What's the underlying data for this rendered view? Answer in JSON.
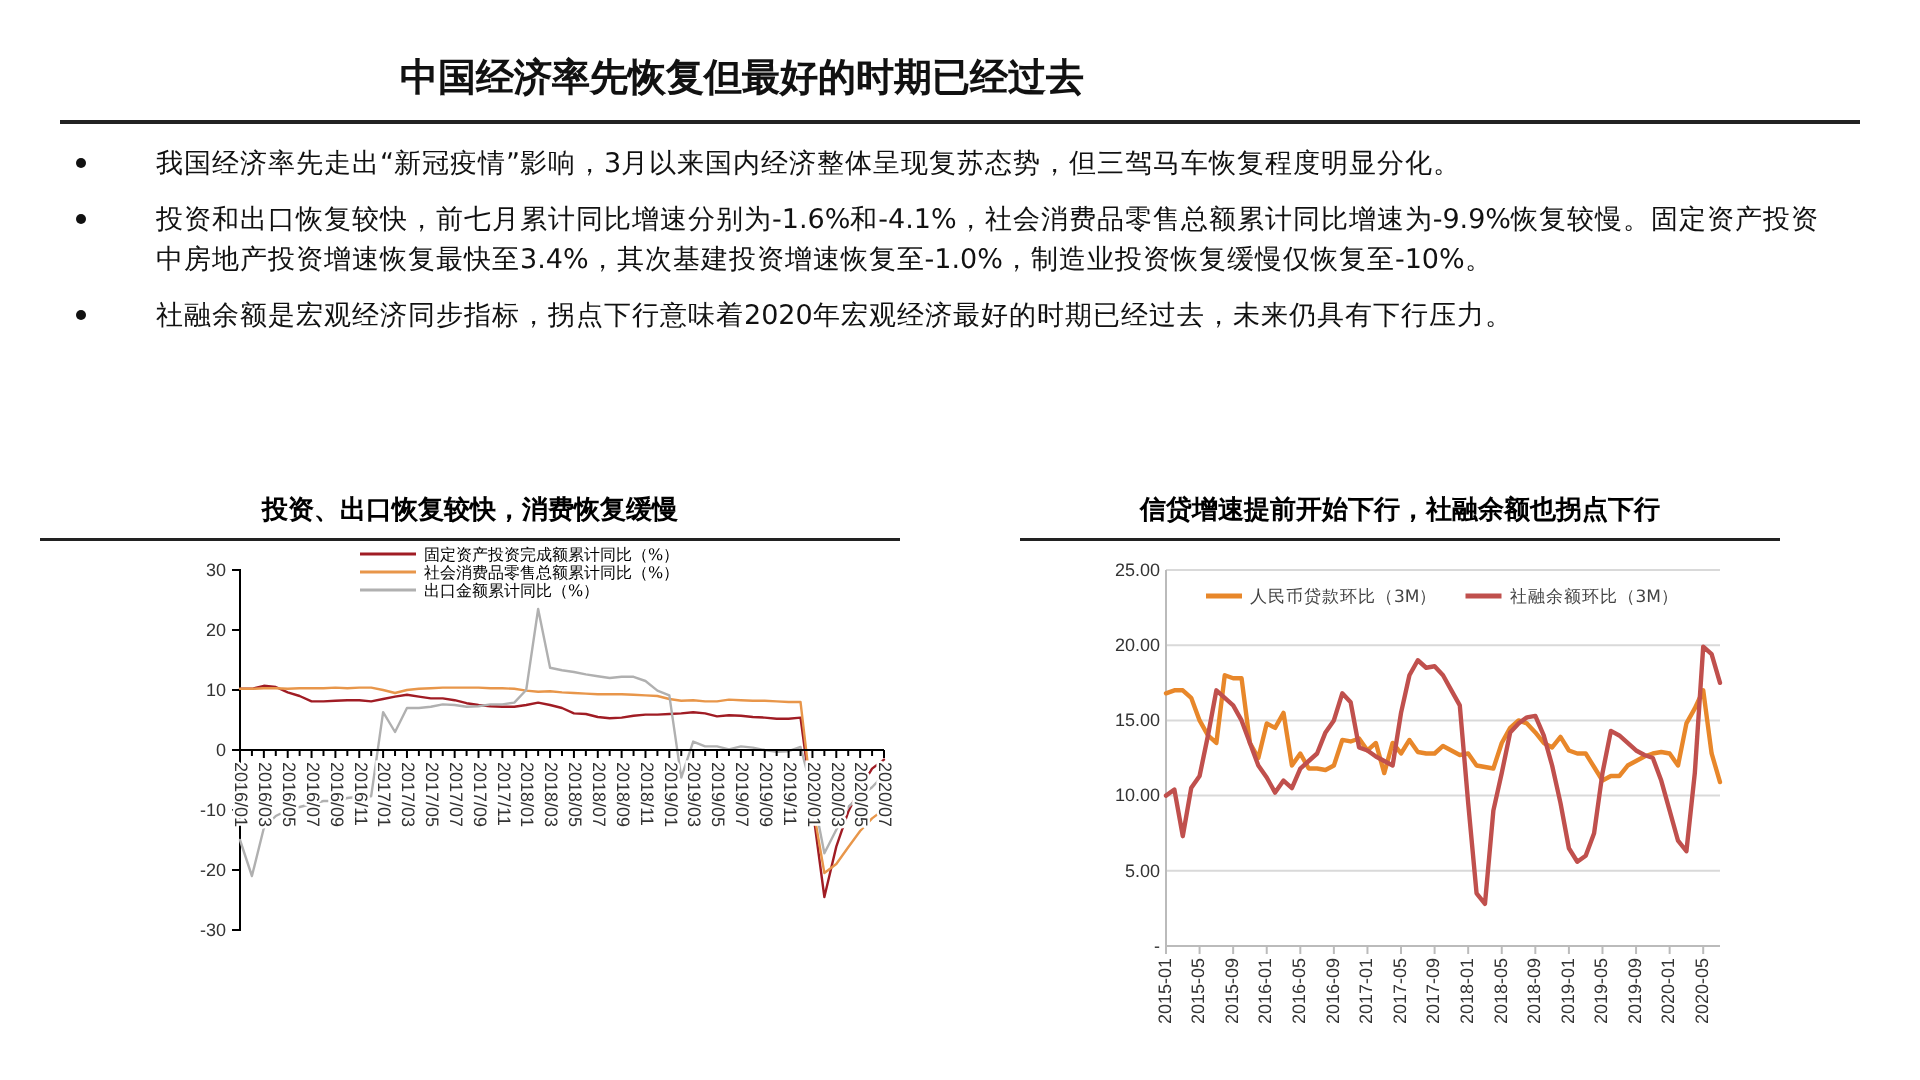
{
  "chart_data": [
    {
      "type": "other",
      "title": "中国经济率先恢复但最好的时期已经过去",
      "annotations": [
        "我国经济率先走出“新冠疫情”影响，3月以来国内经济整体呈现复苏态势，但三驾马车恢复程度明显分化。",
        "投资和出口恢复较快，前七月累计同比增速分别为-1.6%和-4.1%，社会消费品零售总额累计同比增速为-9.9%恢复较慢。固定资产投资中房地产投资增速恢复最快至3.4%，其次基建投资增速恢复至-1.0%，制造业投资恢复缓慢仅恢复至-10%。",
        "社融余额是宏观经济同步指标，拐点下行意味着2020年宏观经济最好的时期已经过去，未来仍具有下行压力。"
      ]
    },
    {
      "type": "line",
      "title": "投资、出口恢复较快，消费恢复缓慢",
      "legend": "top",
      "grid": false,
      "categories": [
        "2016/01",
        null,
        "2016/03",
        null,
        "2016/05",
        null,
        "2016/07",
        null,
        "2016/09",
        null,
        "2016/11",
        null,
        "2017/01",
        null,
        "2017/03",
        null,
        "2017/05",
        null,
        "2017/07",
        null,
        "2017/09",
        null,
        "2017/11",
        null,
        "2018/01",
        null,
        "2018/03",
        null,
        "2018/05",
        null,
        "2018/07",
        null,
        "2018/09",
        null,
        "2018/11",
        null,
        "2019/01",
        null,
        "2019/03",
        null,
        "2019/05",
        null,
        "2019/07",
        null,
        "2019/09",
        null,
        "2019/11",
        null,
        "2020/01",
        null,
        "2020/03",
        null,
        "2020/05",
        null,
        "2020/07"
      ],
      "ylim": [
        -30,
        30
      ],
      "yticks": [
        -30,
        -20,
        -10,
        0,
        10,
        20,
        30
      ],
      "series": [
        {
          "name": "固定资产投资完成额累计同比（%）",
          "color": "#a01c24",
          "values": [
            10.2,
            10.2,
            10.7,
            10.5,
            9.6,
            9.0,
            8.1,
            8.1,
            8.2,
            8.3,
            8.3,
            8.1,
            8.5,
            8.9,
            9.2,
            8.9,
            8.6,
            8.6,
            8.3,
            7.8,
            7.5,
            7.3,
            7.2,
            7.2,
            7.5,
            7.9,
            7.5,
            7.0,
            6.1,
            6.0,
            5.5,
            5.3,
            5.4,
            5.7,
            5.9,
            5.9,
            6.0,
            6.1,
            6.3,
            6.1,
            5.6,
            5.8,
            5.7,
            5.5,
            5.4,
            5.2,
            5.2,
            5.4,
            -9.5,
            -24.5,
            -16.1,
            -10.3,
            -6.3,
            -3.1,
            -1.6
          ]
        },
        {
          "name": "社会消费品零售总额累计同比（%）",
          "color": "#e8964a",
          "values": [
            10.2,
            10.2,
            10.3,
            10.3,
            10.2,
            10.3,
            10.3,
            10.3,
            10.4,
            10.3,
            10.4,
            10.4,
            10.0,
            9.5,
            10.0,
            10.2,
            10.3,
            10.4,
            10.4,
            10.4,
            10.4,
            10.3,
            10.3,
            10.2,
            9.9,
            9.7,
            9.8,
            9.6,
            9.5,
            9.4,
            9.3,
            9.3,
            9.3,
            9.2,
            9.1,
            9.0,
            8.5,
            8.2,
            8.3,
            8.1,
            8.1,
            8.4,
            8.3,
            8.2,
            8.2,
            8.1,
            8.0,
            8.0,
            -9.0,
            -20.5,
            -19.0,
            -16.2,
            -13.5,
            -11.4,
            -9.9
          ]
        },
        {
          "name": "出口金额累计同比（%）",
          "color": "#b0b0b0",
          "values": [
            -15,
            -21,
            -13,
            -11,
            -10,
            -9.5,
            -9,
            -8.5,
            -8.5,
            -8,
            -7.8,
            -7.7,
            6.3,
            3,
            7,
            7,
            7.2,
            7.6,
            7.5,
            7.2,
            7.3,
            7.6,
            7.6,
            7.9,
            10,
            23.5,
            13.7,
            13.3,
            13,
            12.6,
            12.3,
            12,
            12.2,
            12.2,
            11.5,
            9.9,
            9.1,
            -4.6,
            1.4,
            0.6,
            0.6,
            0.1,
            0.6,
            0.4,
            0,
            -0.3,
            -0.2,
            0.5,
            -7,
            -17.2,
            -13.3,
            -9.5,
            -7.7,
            -6.2,
            -4.1
          ]
        }
      ]
    },
    {
      "type": "line",
      "title": "信贷增速提前开始下行，社融余额也拐点下行",
      "legend": "top",
      "grid": "y",
      "categories": [
        "2015-01",
        null,
        null,
        null,
        "2015-05",
        null,
        null,
        null,
        "2015-09",
        null,
        null,
        null,
        "2016-01",
        null,
        null,
        null,
        "2016-05",
        null,
        null,
        null,
        "2016-09",
        null,
        null,
        null,
        "2017-01",
        null,
        null,
        null,
        "2017-05",
        null,
        null,
        null,
        "2017-09",
        null,
        null,
        null,
        "2018-01",
        null,
        null,
        null,
        "2018-05",
        null,
        null,
        null,
        "2018-09",
        null,
        null,
        null,
        "2019-01",
        null,
        null,
        null,
        "2019-05",
        null,
        null,
        null,
        "2019-09",
        null,
        null,
        null,
        "2020-01",
        null,
        null,
        null,
        "2020-05",
        null,
        null
      ],
      "ylim": [
        0,
        25
      ],
      "yticks": [
        {
          "value": 0,
          "label": "-"
        },
        {
          "value": 5,
          "label": "5.00"
        },
        {
          "value": 10,
          "label": "10.00"
        },
        {
          "value": 15,
          "label": "15.00"
        },
        {
          "value": 20,
          "label": "20.00"
        },
        {
          "value": 25,
          "label": "25.00"
        }
      ],
      "series": [
        {
          "name": "人民币贷款环比（3M）",
          "color": "#e8872a",
          "values": [
            16.8,
            17.0,
            17.0,
            16.5,
            15.0,
            14.0,
            13.5,
            18.0,
            17.8,
            17.8,
            13.5,
            12.5,
            14.8,
            14.5,
            15.5,
            12.0,
            12.8,
            11.8,
            11.8,
            11.7,
            12.0,
            13.7,
            13.6,
            13.8,
            13.0,
            13.5,
            11.5,
            13.5,
            12.8,
            13.7,
            12.9,
            12.8,
            12.8,
            13.3,
            13.0,
            12.7,
            12.8,
            12.0,
            11.9,
            11.8,
            13.5,
            14.5,
            15.0,
            14.8,
            14.2,
            13.5,
            13.2,
            13.9,
            13.0,
            12.8,
            12.8,
            11.9,
            11.0,
            11.3,
            11.3,
            12.0,
            12.3,
            12.6,
            12.8,
            12.9,
            12.8,
            12.0,
            14.8,
            15.8,
            17.0,
            12.8,
            10.9
          ]
        },
        {
          "name": "社融余额环比（3M）",
          "color": "#c0504d",
          "values": [
            10.0,
            10.4,
            7.3,
            10.5,
            11.3,
            14.0,
            17.0,
            16.5,
            16.0,
            15.0,
            13.5,
            12.0,
            11.2,
            10.2,
            11.0,
            10.5,
            11.8,
            12.3,
            12.8,
            14.2,
            15.0,
            16.8,
            16.2,
            13.2,
            13.0,
            12.6,
            12.3,
            12.0,
            15.5,
            18.0,
            19.0,
            18.5,
            18.6,
            18.0,
            17.0,
            16.0,
            9.5,
            3.5,
            2.8,
            9.0,
            11.5,
            14.2,
            14.8,
            15.2,
            15.3,
            14.0,
            12.0,
            9.5,
            6.5,
            5.6,
            6.0,
            7.5,
            11.5,
            14.3,
            14.0,
            13.5,
            13.0,
            12.7,
            12.5,
            11.0,
            9.0,
            7.0,
            6.3,
            11.5,
            19.9,
            19.4,
            17.5
          ]
        }
      ]
    }
  ]
}
